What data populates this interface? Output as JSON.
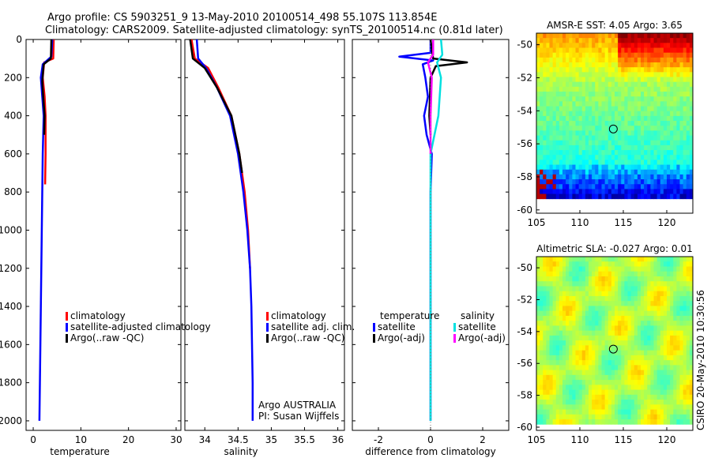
{
  "header": {
    "title_line1": "Argo profile: CS 5903251_9 13-May-2010 20100514_498 55.107S 113.854E",
    "title_line2": "Climatology: CARS2009. Satellite-adjusted climatology: synTS_20100514.nc (0.81d later)"
  },
  "side_label": "CSIRO 20-May-2010 10:30:56",
  "colors": {
    "climatology": "#ff0000",
    "satellite": "#0000ff",
    "argo": "#000000",
    "sat_salinity": "#00e0e0",
    "argo_salinity": "#ff00ff",
    "marker": "#000000"
  },
  "chart_data": [
    {
      "id": "temperature",
      "type": "line",
      "xlabel": "temperature",
      "ylabel": "",
      "xlim": [
        -1.5,
        31
      ],
      "ylim": [
        2050,
        0
      ],
      "xticks": [
        0,
        10,
        20,
        30
      ],
      "yticks": [
        0,
        200,
        400,
        600,
        800,
        1000,
        1200,
        1400,
        1600,
        1800,
        2000
      ],
      "legend": [
        "climatology",
        "satellite-adjusted climatology",
        "Argo(..raw -QC)"
      ],
      "series": [
        {
          "name": "climatology",
          "color": "#ff0000",
          "points": [
            [
              4.3,
              0
            ],
            [
              4.2,
              100
            ],
            [
              2.3,
              120
            ],
            [
              2.0,
              200
            ],
            [
              2.4,
              300
            ],
            [
              2.6,
              400
            ],
            [
              2.6,
              600
            ],
            [
              2.5,
              760
            ]
          ]
        },
        {
          "name": "satellite-adjusted climatology",
          "color": "#0000ff",
          "points": [
            [
              4.0,
              0
            ],
            [
              3.8,
              90
            ],
            [
              2.0,
              130
            ],
            [
              1.6,
              200
            ],
            [
              1.9,
              300
            ],
            [
              2.2,
              400
            ],
            [
              2.0,
              600
            ],
            [
              1.9,
              800
            ],
            [
              1.8,
              1000
            ],
            [
              1.7,
              1200
            ],
            [
              1.6,
              1400
            ],
            [
              1.5,
              1600
            ],
            [
              1.4,
              1800
            ],
            [
              1.3,
              2000
            ]
          ]
        },
        {
          "name": "Argo(..raw -QC)",
          "color": "#000000",
          "points": [
            [
              3.8,
              0
            ],
            [
              3.7,
              100
            ],
            [
              2.2,
              130
            ],
            [
              1.9,
              220
            ],
            [
              2.1,
              300
            ],
            [
              2.4,
              400
            ],
            [
              2.3,
              500
            ]
          ]
        }
      ]
    },
    {
      "id": "salinity",
      "type": "line",
      "xlabel": "salinity",
      "ylabel": "",
      "xlim": [
        33.7,
        36.1
      ],
      "ylim": [
        2050,
        0
      ],
      "xticks": [
        34,
        34.5,
        35,
        35.5,
        36
      ],
      "legend": [
        "climatology",
        "satellite adj. clim.",
        "Argo(..raw -QC)"
      ],
      "annotation": [
        "Argo AUSTRALIA",
        "PI: Susan Wijffels"
      ],
      "series": [
        {
          "name": "climatology",
          "color": "#ff0000",
          "points": [
            [
              33.8,
              0
            ],
            [
              33.85,
              100
            ],
            [
              34.05,
              150
            ],
            [
              34.2,
              250
            ],
            [
              34.4,
              400
            ],
            [
              34.52,
              600
            ],
            [
              34.6,
              800
            ],
            [
              34.65,
              1000
            ],
            [
              34.68,
              1200
            ]
          ]
        },
        {
          "name": "satellite adj. clim.",
          "color": "#0000ff",
          "points": [
            [
              33.88,
              0
            ],
            [
              33.9,
              100
            ],
            [
              34.02,
              150
            ],
            [
              34.18,
              250
            ],
            [
              34.38,
              400
            ],
            [
              34.5,
              600
            ],
            [
              34.58,
              800
            ],
            [
              34.64,
              1000
            ],
            [
              34.68,
              1200
            ],
            [
              34.7,
              1400
            ],
            [
              34.71,
              1600
            ],
            [
              34.72,
              1800
            ],
            [
              34.72,
              2000
            ]
          ]
        },
        {
          "name": "Argo(..raw -QC)",
          "color": "#000000",
          "points": [
            [
              33.78,
              0
            ],
            [
              33.82,
              100
            ],
            [
              34.0,
              150
            ],
            [
              34.18,
              250
            ],
            [
              34.4,
              400
            ],
            [
              34.52,
              600
            ],
            [
              34.56,
              700
            ]
          ]
        }
      ]
    },
    {
      "id": "difference",
      "type": "line",
      "xlabel": "difference from climatology",
      "ylabel": "",
      "xlim": [
        -3,
        3
      ],
      "ylim": [
        2050,
        0
      ],
      "xticks": [
        -2,
        0,
        2
      ],
      "legend_left": {
        "title": "temperature",
        "items": [
          "satellite",
          "Argo(-adj)"
        ]
      },
      "legend_right": {
        "title": "salinity",
        "items": [
          "satellite",
          "Argo(-adj)"
        ]
      },
      "series": [
        {
          "name": "temperature satellite",
          "color": "#0000ff",
          "points": [
            [
              0.0,
              0
            ],
            [
              0.0,
              70
            ],
            [
              -1.2,
              90
            ],
            [
              0.1,
              110
            ],
            [
              -0.3,
              130
            ],
            [
              -0.2,
              200
            ],
            [
              -0.1,
              300
            ],
            [
              -0.25,
              400
            ],
            [
              -0.15,
              500
            ],
            [
              0.05,
              600
            ],
            [
              0.0,
              800
            ],
            [
              0.0,
              1200
            ],
            [
              0.0,
              2000
            ]
          ]
        },
        {
          "name": "temperature Argo(-adj)",
          "color": "#000000",
          "points": [
            [
              0.0,
              0
            ],
            [
              0.1,
              100
            ],
            [
              1.4,
              120
            ],
            [
              0.2,
              140
            ],
            [
              0.0,
              200
            ],
            [
              -0.05,
              400
            ],
            [
              0.0,
              500
            ]
          ]
        },
        {
          "name": "salinity satellite",
          "color": "#00e0e0",
          "points": [
            [
              0.4,
              0
            ],
            [
              0.45,
              80
            ],
            [
              0.25,
              120
            ],
            [
              0.4,
              200
            ],
            [
              0.3,
              400
            ],
            [
              0.0,
              600
            ],
            [
              0.0,
              1000
            ],
            [
              0.0,
              2000
            ]
          ]
        },
        {
          "name": "salinity Argo(-adj)",
          "color": "#ff00ff",
          "points": [
            [
              0.1,
              0
            ],
            [
              0.1,
              80
            ],
            [
              -0.1,
              120
            ],
            [
              0.05,
              200
            ],
            [
              0.0,
              400
            ],
            [
              0.0,
              600
            ]
          ]
        }
      ]
    },
    {
      "id": "sst_map",
      "type": "heatmap",
      "title": "AMSR-E SST: 4.05 Argo: 3.65",
      "xlim": [
        105,
        123
      ],
      "ylim": [
        -60.2,
        -49.3
      ],
      "xticks": [
        105,
        110,
        115,
        120
      ],
      "yticks": [
        -50,
        -52,
        -54,
        -56,
        -58,
        -60
      ],
      "profile_location": [
        113.85,
        -55.1
      ]
    },
    {
      "id": "sla_map",
      "type": "heatmap",
      "title": "Altimetric SLA: -0.027 Argo: 0.01",
      "xlim": [
        105,
        123
      ],
      "ylim": [
        -60.2,
        -49.3
      ],
      "xticks": [
        105,
        110,
        115,
        120
      ],
      "yticks": [
        -50,
        -52,
        -54,
        -56,
        -58,
        -60
      ],
      "profile_location": [
        113.85,
        -55.1
      ]
    }
  ]
}
